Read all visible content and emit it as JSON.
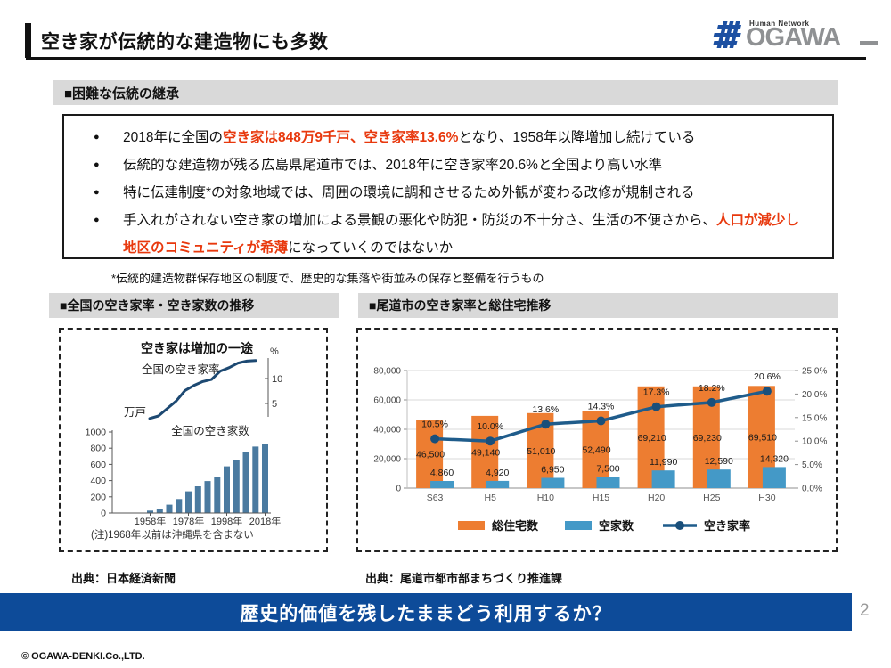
{
  "header": {
    "title": "空き家が伝統的な建造物にも多数",
    "logo": {
      "tagline": "Human Network",
      "brand": "OGAWA",
      "mark_color": "#1d50a2",
      "brand_color": "#8f9193"
    }
  },
  "section1": {
    "heading": "■困難な伝統の継承",
    "bullets": [
      {
        "pre": "2018年に全国の",
        "red": "空き家は848万9千戸、空き家率13.6%",
        "post": "となり、1958年以降増加し続けている"
      },
      {
        "pre": "伝統的な建造物が残る広島県尾道市では、2018年に空き家率20.6%と全国より高い水準",
        "red": "",
        "post": ""
      },
      {
        "pre": "特に伝建制度*の対象地域では、周囲の環境に調和させるため外観が変わる改修が規制される",
        "red": "",
        "post": ""
      },
      {
        "pre": "手入れがされない空き家の増加による景観の悪化や防犯・防災の不十分さ、生活の不便さから、",
        "red": "人口が減少し地区のコミュニティが希薄",
        "post": "になっていくのではないか"
      }
    ],
    "footnote": "*伝統的建造物群保存地区の制度で、歴史的な集落や街並みの保存と整備を行うもの"
  },
  "left_panel": {
    "heading": "■全国の空き家率・空き家数の推移",
    "source": "出典：日本経済新聞"
  },
  "right_panel": {
    "heading": "■尾道市の空き家率と総住宅推移",
    "source": "出典：尾道市都市部まちづくり推進課"
  },
  "chart_data": [
    {
      "id": "national",
      "type": "line+bar",
      "title": "空き家は増加の一途",
      "line_label": "全国の空き家率",
      "line_unit": "%",
      "line_ticks": [
        5,
        10
      ],
      "bar_label": "全国の空き家数",
      "bar_unit": "万戸",
      "bar_ticks": [
        0,
        200,
        400,
        600,
        800,
        1000
      ],
      "years": [
        1958,
        1963,
        1968,
        1973,
        1978,
        1983,
        1988,
        1993,
        1998,
        2003,
        2008,
        2013,
        2018
      ],
      "x_tick_labels": [
        "1958年",
        "1978年",
        "1998年",
        "2018年"
      ],
      "rate_values": [
        2.0,
        2.5,
        4.0,
        5.5,
        7.6,
        8.6,
        9.4,
        9.8,
        11.5,
        12.2,
        13.1,
        13.5,
        13.6
      ],
      "count_values": [
        30,
        52,
        103,
        172,
        268,
        330,
        394,
        448,
        576,
        659,
        757,
        820,
        849
      ],
      "note": "(注)1968年以前は沖縄県を含まない",
      "line_color": "#1d4972",
      "bar_color": "#4a7aa0"
    },
    {
      "id": "onomichi",
      "type": "combo",
      "categories": [
        "S63",
        "H5",
        "H10",
        "H15",
        "H20",
        "H25",
        "H30"
      ],
      "series": [
        {
          "name": "総住宅数",
          "type": "bar",
          "color": "#ed7d31",
          "values": [
            46500,
            49140,
            51010,
            52490,
            69210,
            69230,
            69510
          ],
          "labels": [
            "46,500",
            "49,140",
            "51,010",
            "52,490",
            "69,210",
            "69,230",
            "69,510"
          ]
        },
        {
          "name": "空家数",
          "type": "bar",
          "color": "#4499c7",
          "values": [
            4860,
            4920,
            6950,
            7500,
            11990,
            12590,
            14320
          ],
          "labels": [
            "4,860",
            "4,920",
            "6,950",
            "7,500",
            "11,990",
            "12,590",
            "14,320"
          ]
        },
        {
          "name": "空き家率",
          "type": "line",
          "color": "#1f5c8b",
          "marker_color": "#1a4f7a",
          "values": [
            10.5,
            10.0,
            13.6,
            14.3,
            17.3,
            18.2,
            20.6
          ],
          "labels": [
            "10.5%",
            "10.0%",
            "13.6%",
            "14.3%",
            "17.3%",
            "18.2%",
            "20.6%"
          ]
        }
      ],
      "left_axis": {
        "max": 80000,
        "step": 20000,
        "labels": [
          "0",
          "20,000",
          "40,000",
          "60,000",
          "80,000"
        ]
      },
      "right_axis": {
        "max": 25,
        "step": 5,
        "labels": [
          "0.0%",
          "5.0%",
          "10.0%",
          "15.0%",
          "20.0%",
          "25.0%"
        ]
      },
      "grid": true,
      "legend_position": "bottom"
    }
  ],
  "banner": {
    "text": "歴史的価値を残したままどう利用するか？",
    "bg": "#0d4b99"
  },
  "page_number": "2",
  "footer": "© OGAWA-DENKI.Co.,LTD."
}
